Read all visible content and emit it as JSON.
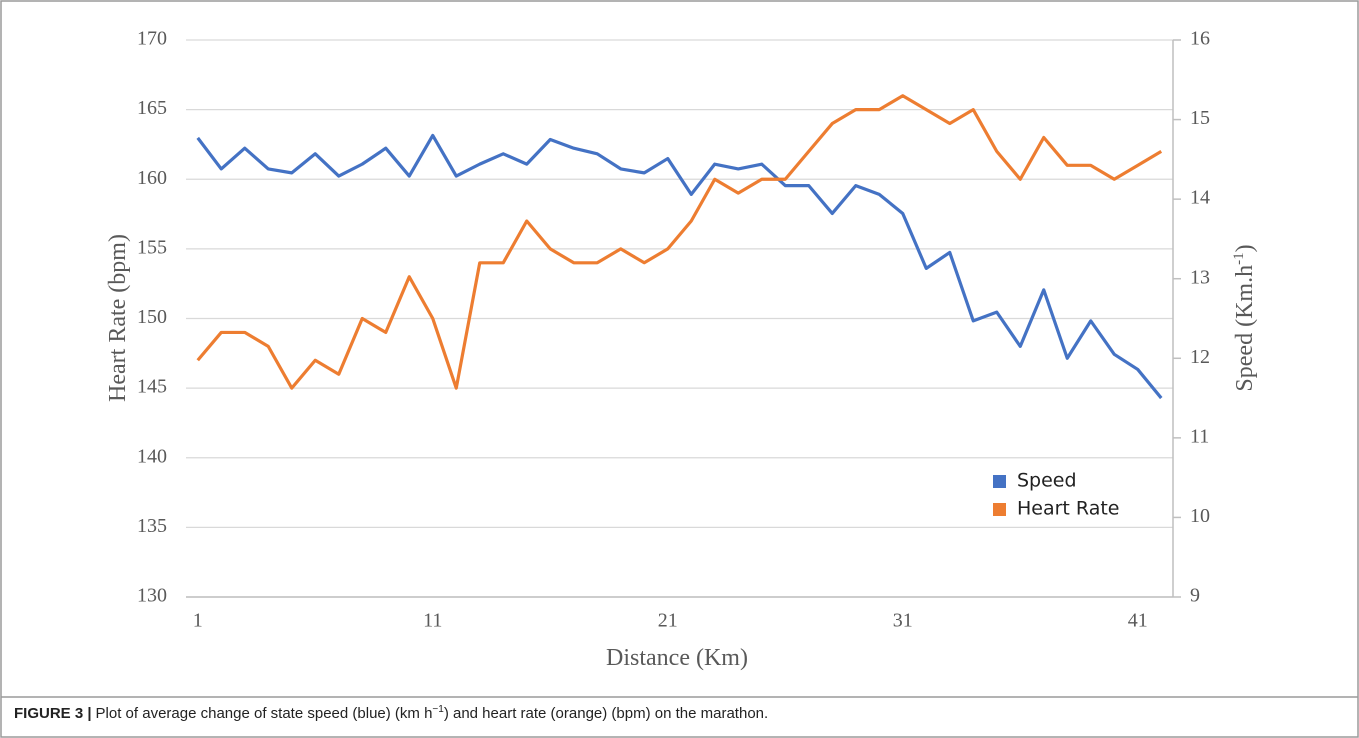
{
  "chart_data": {
    "type": "line",
    "xlabel": "Distance (Km)",
    "ylabel": "Heart Rate (bpm)",
    "y2label": {
      "text": "Speed (Km.h",
      "sup": "-1",
      "end": ")"
    },
    "x": [
      1,
      2,
      3,
      4,
      5,
      6,
      7,
      8,
      9,
      10,
      11,
      12,
      13,
      14,
      15,
      16,
      17,
      18,
      19,
      20,
      21,
      22,
      23,
      24,
      25,
      26,
      27,
      28,
      29,
      30,
      31,
      32,
      33,
      34,
      35,
      36,
      37,
      38,
      39,
      40,
      41,
      42
    ],
    "xlim": [
      0.5,
      42.5
    ],
    "xticks": [
      1,
      11,
      21,
      31,
      41
    ],
    "ylim": [
      130,
      170
    ],
    "yticks": [
      130,
      135,
      140,
      145,
      150,
      155,
      160,
      165,
      170
    ],
    "y2lim": [
      9,
      16
    ],
    "y2ticks": [
      9,
      10,
      11,
      12,
      13,
      14,
      15,
      16
    ],
    "grid": true,
    "legend": "lower right",
    "series": [
      {
        "name": "Speed",
        "color": "#4472c4",
        "axis": "y2",
        "values": [
          14.77,
          14.38,
          14.64,
          14.38,
          14.33,
          14.57,
          14.29,
          14.44,
          14.64,
          14.29,
          14.8,
          14.29,
          14.44,
          14.57,
          14.44,
          14.75,
          14.64,
          14.57,
          14.38,
          14.33,
          14.51,
          14.06,
          14.44,
          14.38,
          14.44,
          14.17,
          14.17,
          13.82,
          14.17,
          14.06,
          13.82,
          13.13,
          13.33,
          12.47,
          12.58,
          12.15,
          12.86,
          12.0,
          12.47,
          12.05,
          11.86,
          11.5
        ]
      },
      {
        "name": "Heart Rate",
        "color": "#ed7d31",
        "values": [
          147,
          149,
          149,
          148,
          145,
          147,
          146,
          150,
          149,
          153,
          150,
          145,
          154,
          154,
          157,
          155,
          154,
          154,
          155,
          154,
          155,
          157,
          160,
          159,
          160,
          160,
          162,
          164,
          165,
          165,
          166,
          165,
          164,
          165,
          162,
          160,
          163,
          161,
          161,
          160,
          161,
          162
        ]
      }
    ]
  },
  "caption": {
    "label": "FIGURE 3 |",
    "before": "Plot of average change of state speed (blue) (km h",
    "sup": "−1",
    "after": ") and heart rate (orange) (bpm) on the marathon."
  }
}
